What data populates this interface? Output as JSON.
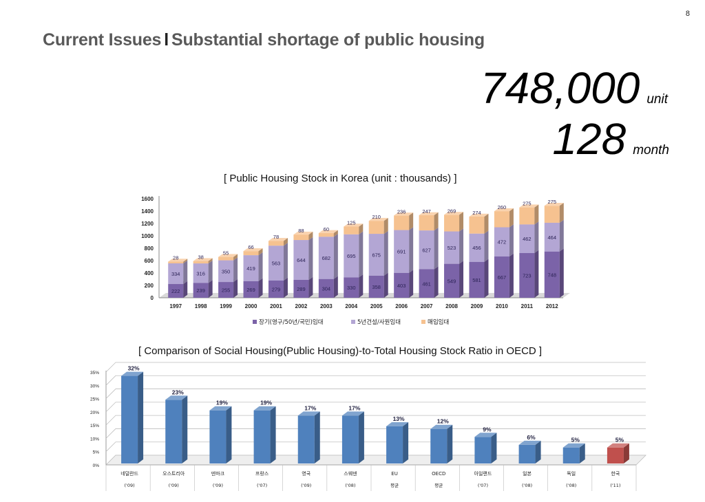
{
  "page_number": "8",
  "title": {
    "part1": "Current Issues",
    "separator": "l",
    "part2": "Substantial shortage of public housing"
  },
  "highlights": [
    {
      "value": "748,000",
      "unit": "unit"
    },
    {
      "value": "128",
      "unit": "month"
    }
  ],
  "colors": {
    "long_term": "#7b63a8",
    "five_year": "#b3a6d4",
    "purchase": "#f6c290",
    "oecd_bar": "#4f81bd",
    "korea_bar": "#c0504d"
  },
  "chart_data": [
    {
      "type": "bar",
      "stacked": true,
      "title": "[ Public Housing Stock in Korea (unit : thousands) ]",
      "categories": [
        "1997",
        "1998",
        "1999",
        "2000",
        "2001",
        "2002",
        "2003",
        "2004",
        "2005",
        "2006",
        "2007",
        "2008",
        "2009",
        "2010",
        "2011",
        "2012"
      ],
      "series": [
        {
          "name": "장기(영구/50년/국민)임대",
          "values": [
            222,
            239,
            255,
            269,
            279,
            289,
            304,
            330,
            358,
            403,
            461,
            549,
            581,
            667,
            723,
            748
          ]
        },
        {
          "name": "5년건설/사원임대",
          "values": [
            334,
            316,
            350,
            419,
            563,
            644,
            682,
            695,
            675,
            691,
            627,
            523,
            456,
            472,
            462,
            464
          ]
        },
        {
          "name": "매입임대",
          "values": [
            28,
            38,
            55,
            66,
            78,
            88,
            60,
            125,
            210,
            236,
            247,
            269,
            274,
            260,
            275,
            275
          ]
        }
      ],
      "yticks": [
        "0",
        "200",
        "400",
        "600",
        "800",
        "1000",
        "1200",
        "1400",
        "1600"
      ],
      "ylim": [
        0,
        1600
      ],
      "grid": false,
      "legend_position": "bottom"
    },
    {
      "type": "bar",
      "title": "[ Comparison of Social Housing(Public Housing)-to-Total Housing Stock Ratio in OECD ]",
      "categories": [
        {
          "name": "네덜란드",
          "year": "('09)",
          "value": 32,
          "label": "32%"
        },
        {
          "name": "오스트리아",
          "year": "('09)",
          "value": 23,
          "label": "23%"
        },
        {
          "name": "덴마크",
          "year": "('09)",
          "value": 19,
          "label": "19%"
        },
        {
          "name": "프랑스",
          "year": "('07)",
          "value": 19,
          "label": "19%"
        },
        {
          "name": "영국",
          "year": "('09)",
          "value": 17,
          "label": "17%"
        },
        {
          "name": "스웨덴",
          "year": "('08)",
          "value": 17,
          "label": "17%"
        },
        {
          "name": "EU",
          "year": "평균",
          "value": 13,
          "label": "13%"
        },
        {
          "name": "OECD",
          "year": "평균",
          "value": 12,
          "label": "12%"
        },
        {
          "name": "아일랜드",
          "year": "('07)",
          "value": 9,
          "label": "9%"
        },
        {
          "name": "일본",
          "year": "('08)",
          "value": 6,
          "label": "6%"
        },
        {
          "name": "독일",
          "year": "('08)",
          "value": 5,
          "label": "5%"
        },
        {
          "name": "한국",
          "year": "('11)",
          "value": 5,
          "label": "5%"
        }
      ],
      "yticks": [
        "0%",
        "5%",
        "10%",
        "15%",
        "20%",
        "25%",
        "30%",
        "35%"
      ],
      "ylim": [
        0,
        35
      ],
      "grid": true,
      "highlight_category": "한국"
    }
  ]
}
